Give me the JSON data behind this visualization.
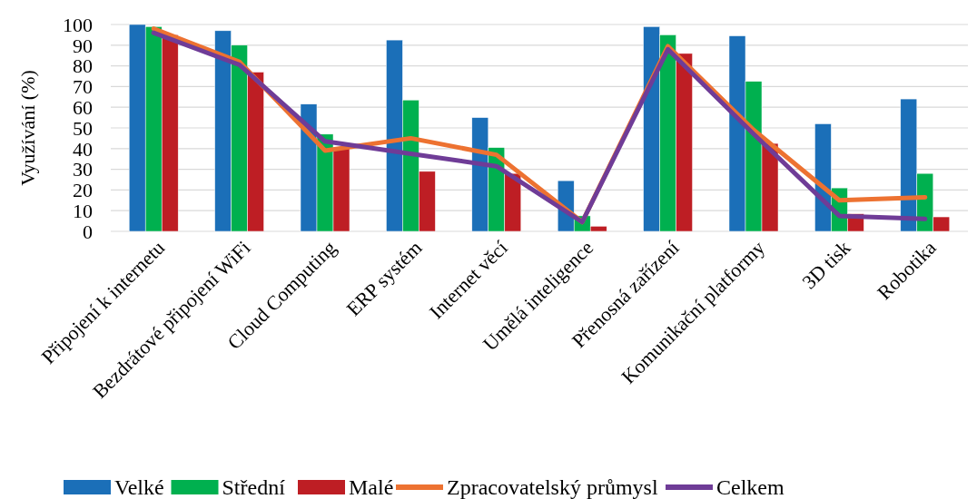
{
  "chart_data": {
    "type": "bar",
    "ylabel": "Využívání (%)",
    "categories": [
      "Připojení k internetu",
      "Bezdrátové připojení WiFi",
      "Cloud Computing",
      "ERP systém",
      "Internet věcí",
      "Umělá inteligence",
      "Přenosná zařízení",
      "Komunikační platformy",
      "3D tisk",
      "Robotika"
    ],
    "series": [
      {
        "name": "Velké",
        "color": "#1b6fb8",
        "values": [
          100,
          97,
          61.5,
          92.5,
          55,
          24.5,
          99,
          94.5,
          52,
          64
        ]
      },
      {
        "name": "Střední",
        "color": "#00b04f",
        "values": [
          99,
          90,
          47,
          63.5,
          40.5,
          7.5,
          95,
          72.5,
          21,
          28
        ]
      },
      {
        "name": "Malé",
        "color": "#be1e24",
        "values": [
          95,
          77,
          40,
          29,
          28,
          2.5,
          86,
          42.5,
          8.5,
          7
        ]
      },
      {
        "name": "Zpracovatelský průmysl",
        "type": "line",
        "color": "#ed7231",
        "values": [
          98,
          82,
          39,
          45,
          37,
          4.5,
          89.5,
          49,
          15,
          16.5
        ]
      },
      {
        "name": "Celkem",
        "type": "line",
        "color": "#6f3c97",
        "values": [
          96,
          80.5,
          43.5,
          37.5,
          31.5,
          4.5,
          88,
          47,
          7.5,
          6
        ]
      }
    ],
    "ylim": [
      0,
      100
    ],
    "yticks": [
      0,
      10,
      20,
      30,
      40,
      50,
      60,
      70,
      80,
      90,
      100
    ],
    "grid": "y",
    "legend": "bottom",
    "marker": "none",
    "line_style": "solid"
  }
}
